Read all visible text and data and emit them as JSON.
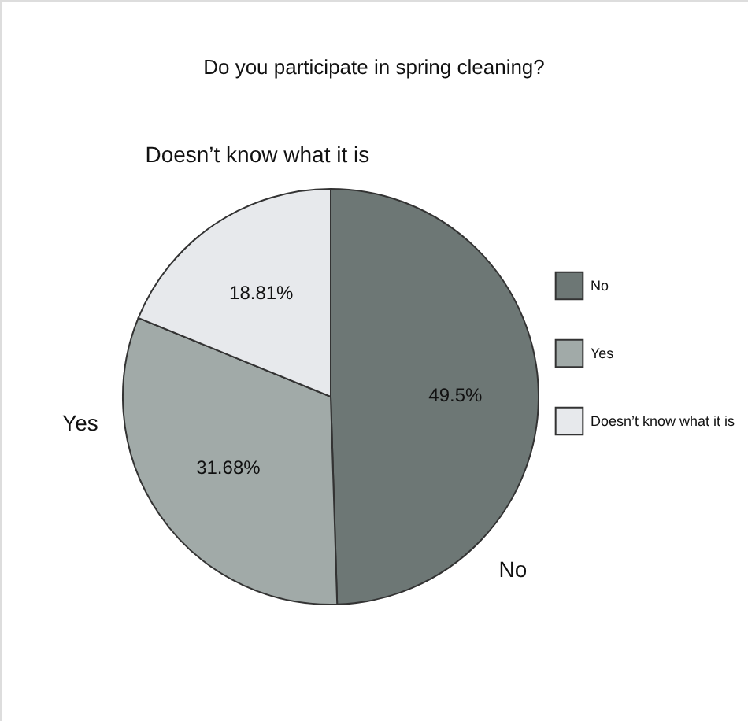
{
  "chart_data": {
    "type": "pie",
    "title": "Do you participate in spring cleaning?",
    "categories": [
      "No",
      "Yes",
      "Doesn’t know what it is"
    ],
    "values": [
      49.5,
      31.68,
      18.81
    ],
    "value_labels": [
      "49.5%",
      "31.68%",
      "18.81%"
    ],
    "colors": [
      "#6d7775",
      "#a1aaa8",
      "#e7e9ec"
    ],
    "legend": "right"
  }
}
